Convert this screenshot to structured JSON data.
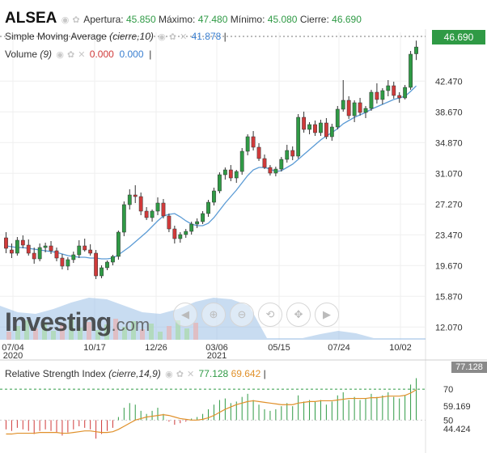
{
  "header": {
    "symbol": "ALSEA",
    "open_label": "Apertura:",
    "open": "45.850",
    "high_label": "Máximo:",
    "high": "47.480",
    "low_label": "Mínimo:",
    "low": "45.080",
    "close_label": "Cierre:",
    "close": "46.690"
  },
  "indicators": {
    "sma_name": "Simple Moving Average",
    "sma_params": "(cierre,10)",
    "sma_value": "41.878",
    "volume_name": "Volume",
    "volume_params": "(9)",
    "volume_v1": "0.000",
    "volume_v2": "0.000",
    "rsi_name": "Relative Strength Index",
    "rsi_params": "(cierre,14,9)",
    "rsi_value": "77.128",
    "rsi_signal": "69.642"
  },
  "last_price_tag": "46.690",
  "rsi_tag": "77.128",
  "watermark": {
    "main": "Investing",
    "suffix": ".com"
  },
  "colors": {
    "up": "#2f9a45",
    "down": "#d03a3a",
    "sma": "#5b9bd5",
    "rsi": "#e0902a",
    "volume_bg": "#9bbfe6",
    "overbought_line": "#2f9a45"
  },
  "toolbar_icons": [
    "pan-left-icon",
    "zoom-in-icon",
    "zoom-out-icon",
    "zoom-reset-icon",
    "zoom-pan-icon",
    "pan-right-icon"
  ],
  "chart_data": [
    {
      "type": "candlestick",
      "title": "ALSEA",
      "x_tick_labels": [
        "07/04",
        "10/17",
        "12/26",
        "03/06",
        "05/15",
        "07/24",
        "10/02"
      ],
      "year_labels": [
        "2020",
        "2021"
      ],
      "y_tick_labels": [
        "12.070",
        "15.870",
        "19.670",
        "23.470",
        "27.270",
        "31.070",
        "34.870",
        "38.670",
        "42.470"
      ],
      "ylim": [
        10.5,
        48.5
      ],
      "grid": true,
      "candles": [
        {
          "o": 23.1,
          "h": 23.8,
          "l": 21.2,
          "c": 21.8
        },
        {
          "o": 21.6,
          "h": 22.4,
          "l": 20.6,
          "c": 21.2
        },
        {
          "o": 21.2,
          "h": 23.2,
          "l": 20.9,
          "c": 22.8
        },
        {
          "o": 22.8,
          "h": 23.4,
          "l": 21.8,
          "c": 22.2
        },
        {
          "o": 22.2,
          "h": 22.9,
          "l": 20.9,
          "c": 21.2
        },
        {
          "o": 21.2,
          "h": 21.9,
          "l": 19.9,
          "c": 20.5
        },
        {
          "o": 20.5,
          "h": 22.4,
          "l": 20.2,
          "c": 21.9
        },
        {
          "o": 21.9,
          "h": 22.5,
          "l": 21.3,
          "c": 22.1
        },
        {
          "o": 22.1,
          "h": 22.7,
          "l": 21.1,
          "c": 21.5
        },
        {
          "o": 21.5,
          "h": 21.9,
          "l": 20.2,
          "c": 20.6
        },
        {
          "o": 20.6,
          "h": 21.1,
          "l": 19.2,
          "c": 19.6
        },
        {
          "o": 19.6,
          "h": 20.7,
          "l": 19.1,
          "c": 20.4
        },
        {
          "o": 20.4,
          "h": 21.4,
          "l": 20.0,
          "c": 21.0
        },
        {
          "o": 21.0,
          "h": 22.8,
          "l": 20.6,
          "c": 22.1
        },
        {
          "o": 22.1,
          "h": 23.0,
          "l": 21.4,
          "c": 21.6
        },
        {
          "o": 21.6,
          "h": 22.3,
          "l": 20.9,
          "c": 21.2
        },
        {
          "o": 21.2,
          "h": 21.6,
          "l": 18.0,
          "c": 18.4
        },
        {
          "o": 18.4,
          "h": 19.7,
          "l": 18.1,
          "c": 19.4
        },
        {
          "o": 19.4,
          "h": 20.3,
          "l": 19.1,
          "c": 20.1
        },
        {
          "o": 20.1,
          "h": 21.0,
          "l": 19.7,
          "c": 20.8
        },
        {
          "o": 20.8,
          "h": 24.0,
          "l": 20.4,
          "c": 23.8
        },
        {
          "o": 23.8,
          "h": 27.6,
          "l": 23.3,
          "c": 27.2
        },
        {
          "o": 27.2,
          "h": 29.1,
          "l": 26.6,
          "c": 28.4
        },
        {
          "o": 28.4,
          "h": 29.6,
          "l": 27.4,
          "c": 28.2
        },
        {
          "o": 28.2,
          "h": 28.7,
          "l": 25.9,
          "c": 26.4
        },
        {
          "o": 26.4,
          "h": 26.9,
          "l": 25.3,
          "c": 25.6
        },
        {
          "o": 25.6,
          "h": 26.6,
          "l": 25.1,
          "c": 26.4
        },
        {
          "o": 26.4,
          "h": 28.1,
          "l": 25.9,
          "c": 27.4
        },
        {
          "o": 27.4,
          "h": 27.9,
          "l": 25.5,
          "c": 25.8
        },
        {
          "o": 25.8,
          "h": 26.1,
          "l": 23.8,
          "c": 24.2
        },
        {
          "o": 24.2,
          "h": 24.6,
          "l": 22.4,
          "c": 23.0
        },
        {
          "o": 23.0,
          "h": 23.8,
          "l": 22.5,
          "c": 23.5
        },
        {
          "o": 23.5,
          "h": 24.2,
          "l": 23.1,
          "c": 23.9
        },
        {
          "o": 23.9,
          "h": 25.1,
          "l": 23.5,
          "c": 24.8
        },
        {
          "o": 24.8,
          "h": 25.5,
          "l": 24.3,
          "c": 25.1
        },
        {
          "o": 25.1,
          "h": 26.4,
          "l": 24.8,
          "c": 26.1
        },
        {
          "o": 26.1,
          "h": 27.8,
          "l": 25.7,
          "c": 27.5
        },
        {
          "o": 27.5,
          "h": 29.3,
          "l": 27.1,
          "c": 28.9
        },
        {
          "o": 28.9,
          "h": 31.2,
          "l": 28.6,
          "c": 30.9
        },
        {
          "o": 30.9,
          "h": 31.8,
          "l": 30.3,
          "c": 31.5
        },
        {
          "o": 31.5,
          "h": 32.1,
          "l": 30.1,
          "c": 30.5
        },
        {
          "o": 30.5,
          "h": 31.5,
          "l": 29.9,
          "c": 31.3
        },
        {
          "o": 31.3,
          "h": 34.2,
          "l": 30.9,
          "c": 33.8
        },
        {
          "o": 33.8,
          "h": 35.9,
          "l": 33.3,
          "c": 35.6
        },
        {
          "o": 35.6,
          "h": 36.3,
          "l": 33.9,
          "c": 34.3
        },
        {
          "o": 34.3,
          "h": 34.8,
          "l": 32.6,
          "c": 32.9
        },
        {
          "o": 32.9,
          "h": 33.4,
          "l": 31.6,
          "c": 31.8
        },
        {
          "o": 31.8,
          "h": 32.1,
          "l": 30.8,
          "c": 31.1
        },
        {
          "o": 31.1,
          "h": 31.9,
          "l": 30.7,
          "c": 31.6
        },
        {
          "o": 31.6,
          "h": 33.1,
          "l": 31.3,
          "c": 32.8
        },
        {
          "o": 32.8,
          "h": 34.6,
          "l": 32.4,
          "c": 33.9
        },
        {
          "o": 33.9,
          "h": 34.4,
          "l": 32.7,
          "c": 33.2
        },
        {
          "o": 33.2,
          "h": 38.4,
          "l": 32.9,
          "c": 38.0
        },
        {
          "o": 38.0,
          "h": 38.7,
          "l": 36.1,
          "c": 36.5
        },
        {
          "o": 36.5,
          "h": 37.4,
          "l": 35.9,
          "c": 37.1
        },
        {
          "o": 37.1,
          "h": 37.6,
          "l": 35.7,
          "c": 36.1
        },
        {
          "o": 36.1,
          "h": 37.7,
          "l": 35.7,
          "c": 37.3
        },
        {
          "o": 37.3,
          "h": 37.9,
          "l": 35.3,
          "c": 35.6
        },
        {
          "o": 35.6,
          "h": 37.2,
          "l": 35.1,
          "c": 36.8
        },
        {
          "o": 36.8,
          "h": 39.4,
          "l": 36.5,
          "c": 39.0
        },
        {
          "o": 39.0,
          "h": 42.6,
          "l": 38.7,
          "c": 40.1
        },
        {
          "o": 40.1,
          "h": 40.6,
          "l": 37.8,
          "c": 38.2
        },
        {
          "o": 38.2,
          "h": 40.1,
          "l": 37.4,
          "c": 39.8
        },
        {
          "o": 39.8,
          "h": 40.4,
          "l": 38.2,
          "c": 38.6
        },
        {
          "o": 38.6,
          "h": 39.4,
          "l": 37.9,
          "c": 39.1
        },
        {
          "o": 39.1,
          "h": 41.4,
          "l": 38.8,
          "c": 41.1
        },
        {
          "o": 41.1,
          "h": 42.2,
          "l": 39.7,
          "c": 40.2
        },
        {
          "o": 40.2,
          "h": 41.6,
          "l": 39.6,
          "c": 41.3
        },
        {
          "o": 41.3,
          "h": 42.6,
          "l": 40.6,
          "c": 41.9
        },
        {
          "o": 41.9,
          "h": 42.4,
          "l": 40.3,
          "c": 40.7
        },
        {
          "o": 40.7,
          "h": 41.1,
          "l": 39.8,
          "c": 40.4
        },
        {
          "o": 40.4,
          "h": 42.0,
          "l": 40.2,
          "c": 41.7
        },
        {
          "o": 41.7,
          "h": 46.2,
          "l": 41.4,
          "c": 45.8
        },
        {
          "o": 45.85,
          "h": 47.48,
          "l": 45.08,
          "c": 46.69
        }
      ],
      "sma": [
        22.1,
        22.0,
        21.9,
        21.9,
        21.8,
        21.7,
        21.6,
        21.5,
        21.4,
        21.3,
        21.1,
        20.9,
        20.8,
        20.7,
        20.7,
        20.6,
        20.6,
        20.5,
        20.5,
        20.6,
        21.0,
        21.5,
        22.0,
        22.6,
        23.2,
        23.8,
        24.5,
        25.2,
        25.8,
        26.0,
        26.1,
        25.7,
        25.2,
        24.8,
        24.6,
        24.6,
        24.9,
        25.6,
        26.5,
        27.4,
        28.2,
        29.0,
        29.9,
        30.8,
        31.5,
        31.8,
        31.8,
        31.6,
        31.3,
        31.4,
        31.8,
        32.2,
        32.8,
        33.4,
        34.0,
        34.6,
        35.2,
        35.7,
        36.1,
        36.6,
        37.2,
        37.6,
        38.0,
        38.3,
        38.6,
        39.0,
        39.3,
        39.6,
        39.9,
        40.2,
        40.4,
        40.6,
        41.2,
        41.878
      ]
    },
    {
      "type": "bar",
      "title": "Volume",
      "note": "volume histogram along the bottom of the price panel"
    },
    {
      "type": "line",
      "title": "Relative Strength Index",
      "y_tick_labels": [
        "70",
        "59.169",
        "50",
        "44.424"
      ],
      "ylim": [
        35,
        80
      ],
      "overbought": 70,
      "rsi": [
        44,
        43,
        45,
        44,
        43,
        41,
        43,
        44,
        43,
        42,
        40,
        42,
        44,
        46,
        45,
        44,
        38,
        41,
        43,
        45,
        52,
        58,
        61,
        60,
        56,
        54,
        56,
        58,
        54,
        49,
        47,
        48,
        49,
        51,
        52,
        54,
        57,
        60,
        63,
        64,
        61,
        62,
        65,
        67,
        63,
        60,
        57,
        56,
        57,
        59,
        61,
        59,
        66,
        62,
        63,
        62,
        63,
        60,
        62,
        66,
        68,
        63,
        65,
        63,
        64,
        67,
        65,
        66,
        68,
        65,
        64,
        66,
        73,
        77.128
      ],
      "signal": [
        41,
        41,
        41.5,
        41.5,
        41.5,
        41.5,
        42,
        42,
        42,
        42,
        41.5,
        41.5,
        42,
        42.5,
        43,
        43,
        42.5,
        42,
        42,
        42.5,
        44,
        46,
        48,
        50,
        51,
        52,
        52.5,
        53,
        53.5,
        53,
        52,
        51,
        50.5,
        50,
        50,
        50.5,
        51.5,
        53,
        55,
        57,
        58.5,
        60,
        61,
        62,
        62.5,
        62,
        61.5,
        61,
        60.5,
        60,
        60,
        60,
        61,
        61.5,
        62,
        62,
        62.5,
        62.5,
        62.5,
        63,
        63.5,
        64,
        64,
        64,
        64,
        64.5,
        64.5,
        65,
        65.5,
        65.5,
        65.5,
        66,
        67.5,
        69.642
      ]
    }
  ]
}
